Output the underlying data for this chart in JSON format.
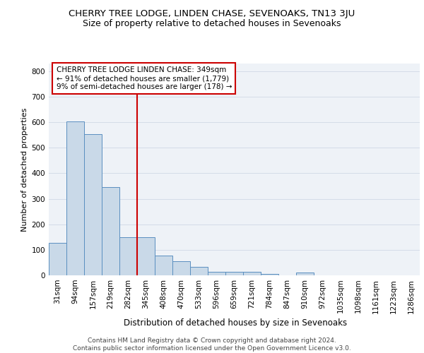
{
  "title1": "CHERRY TREE LODGE, LINDEN CHASE, SEVENOAKS, TN13 3JU",
  "title2": "Size of property relative to detached houses in Sevenoaks",
  "xlabel": "Distribution of detached houses by size in Sevenoaks",
  "ylabel": "Number of detached properties",
  "categories": [
    "31sqm",
    "94sqm",
    "157sqm",
    "219sqm",
    "282sqm",
    "345sqm",
    "408sqm",
    "470sqm",
    "533sqm",
    "596sqm",
    "659sqm",
    "721sqm",
    "784sqm",
    "847sqm",
    "910sqm",
    "972sqm",
    "1035sqm",
    "1098sqm",
    "1161sqm",
    "1223sqm",
    "1286sqm"
  ],
  "values": [
    127,
    603,
    554,
    347,
    150,
    150,
    77,
    55,
    33,
    15,
    14,
    14,
    5,
    0,
    10,
    0,
    0,
    0,
    0,
    0,
    0
  ],
  "bar_color": "#c9d9e8",
  "bar_edge_color": "#5a8fc0",
  "grid_color": "#d4dce8",
  "background_color": "#eef2f7",
  "annotation_text": "CHERRY TREE LODGE LINDEN CHASE: 349sqm\n← 91% of detached houses are smaller (1,779)\n9% of semi-detached houses are larger (178) →",
  "annotation_box_color": "#ffffff",
  "annotation_box_edge": "#cc0000",
  "vline_color": "#cc0000",
  "vline_x_index": 5,
  "ylim": [
    0,
    830
  ],
  "yticks": [
    0,
    100,
    200,
    300,
    400,
    500,
    600,
    700,
    800
  ],
  "footnote": "Contains HM Land Registry data © Crown copyright and database right 2024.\nContains public sector information licensed under the Open Government Licence v3.0.",
  "title1_fontsize": 9.5,
  "title2_fontsize": 9,
  "xlabel_fontsize": 8.5,
  "ylabel_fontsize": 8,
  "tick_fontsize": 7.5,
  "annotation_fontsize": 7.5,
  "footnote_fontsize": 6.5
}
